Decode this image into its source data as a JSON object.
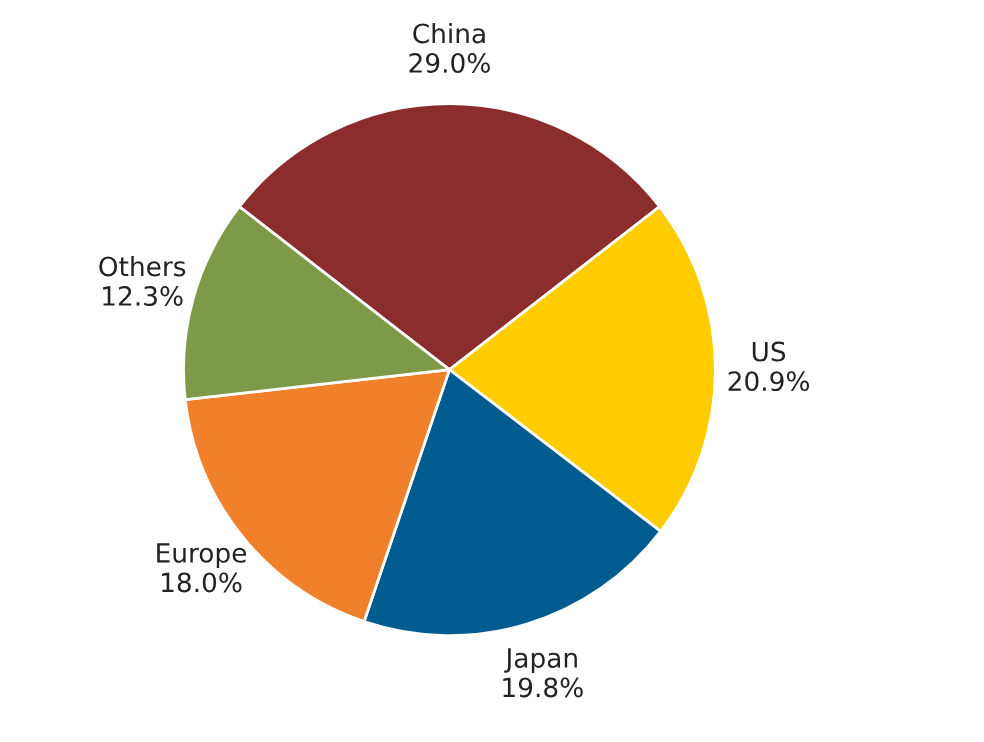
{
  "chart_data": {
    "type": "pie",
    "categories": [
      "China",
      "US",
      "Japan",
      "Europe",
      "Others"
    ],
    "values": [
      29.0,
      20.9,
      19.8,
      18.0,
      12.3
    ],
    "value_labels": [
      "29.0%",
      "20.9%",
      "19.8%",
      "18.0%",
      "12.3%"
    ],
    "colors": [
      "#8b2d2d",
      "#ffcc00",
      "#005b8e",
      "#f0802a",
      "#7e9a49"
    ]
  }
}
